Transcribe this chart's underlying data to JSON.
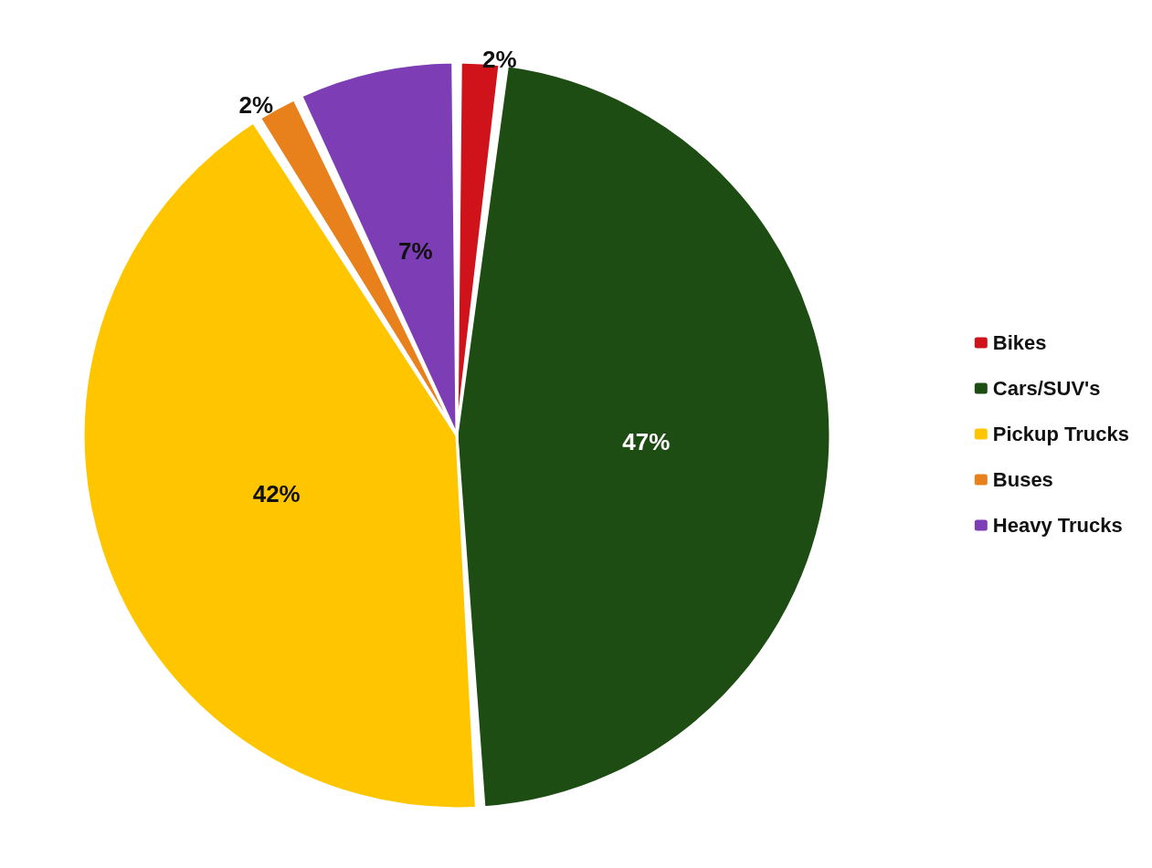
{
  "chart_data": {
    "type": "pie",
    "categories": [
      "Bikes",
      "Cars/SUV's",
      "Pickup Trucks",
      "Buses",
      "Heavy Trucks"
    ],
    "values": [
      2,
      47,
      42,
      2,
      7
    ],
    "colors": [
      "#d0121b",
      "#1d4d12",
      "#ffc600",
      "#e8801c",
      "#7d3db5"
    ],
    "value_labels": [
      "2%",
      "47%",
      "42%",
      "2%",
      "7%"
    ],
    "legend": "right"
  }
}
